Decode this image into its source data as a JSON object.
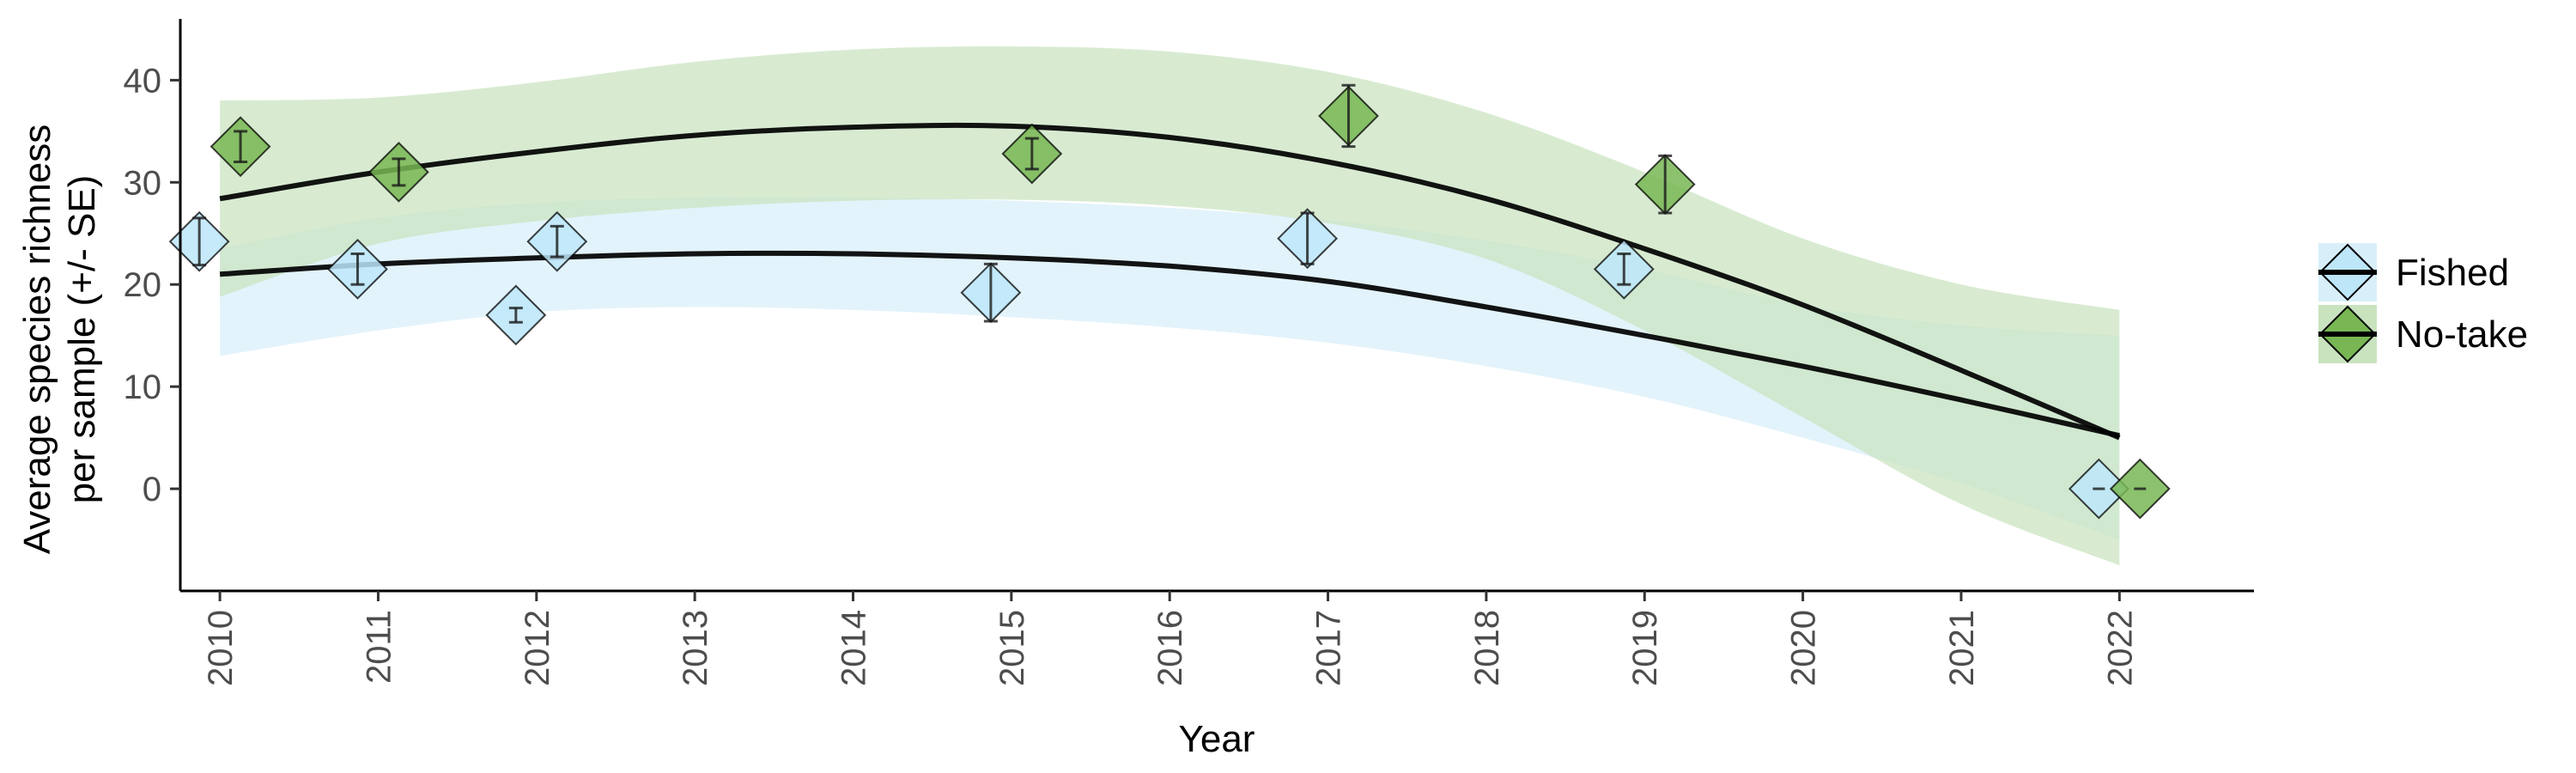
{
  "chart_data": {
    "type": "scatter",
    "title": "",
    "xlabel": "Year",
    "ylabel_lines": [
      "Average species richness",
      "per sample (+/- SE)"
    ],
    "xlim": [
      2009.75,
      2022.85
    ],
    "ylim": [
      -10,
      46
    ],
    "xticks": [
      2010,
      2011,
      2012,
      2013,
      2014,
      2015,
      2016,
      2017,
      2018,
      2019,
      2020,
      2021,
      2022
    ],
    "yticks": [
      0,
      10,
      20,
      30,
      40
    ],
    "grid": false,
    "legend_position": "right",
    "series": [
      {
        "name": "Fished",
        "color": "#bde6f9",
        "band_color": "#d8effa",
        "points": [
          {
            "x": 2009.87,
            "y": 24.2,
            "se": 2.3
          },
          {
            "x": 2010.87,
            "y": 21.5,
            "se": 1.5
          },
          {
            "x": 2011.87,
            "y": 17.0,
            "se": 0.7
          },
          {
            "x": 2012.13,
            "y": 24.2,
            "se": 1.5
          },
          {
            "x": 2014.87,
            "y": 19.2,
            "se": 2.8
          },
          {
            "x": 2016.87,
            "y": 24.5,
            "se": 2.5
          },
          {
            "x": 2018.87,
            "y": 21.5,
            "se": 1.5
          },
          {
            "x": 2021.87,
            "y": 0.0,
            "se": 0.0
          }
        ],
        "fit": {
          "x": [
            2010,
            2011,
            2012,
            2013,
            2014,
            2015,
            2016,
            2017,
            2018,
            2019,
            2020,
            2021,
            2022
          ],
          "y": [
            21.0,
            22.0,
            22.6,
            23.0,
            23.0,
            22.6,
            21.8,
            20.3,
            17.8,
            15.0,
            12.0,
            8.7,
            5.2
          ]
        },
        "band": {
          "upper": [
            23.5,
            26.5,
            28.0,
            28.5,
            28.5,
            28.2,
            27.5,
            26.3,
            24.3,
            21.5,
            18.0,
            16.0,
            15.0
          ],
          "lower": [
            13.0,
            15.5,
            17.3,
            17.8,
            17.5,
            16.8,
            15.8,
            14.3,
            12.0,
            9.0,
            5.0,
            0.5,
            -5.0
          ]
        }
      },
      {
        "name": "No-take",
        "color": "#78b754",
        "band_color": "#c9e3bf",
        "points": [
          {
            "x": 2010.13,
            "y": 33.5,
            "se": 1.5
          },
          {
            "x": 2011.13,
            "y": 31.0,
            "se": 1.3
          },
          {
            "x": 2015.13,
            "y": 32.8,
            "se": 1.5
          },
          {
            "x": 2017.13,
            "y": 36.5,
            "se": 3.0
          },
          {
            "x": 2019.13,
            "y": 29.8,
            "se": 2.8
          },
          {
            "x": 2022.13,
            "y": 0.0,
            "se": 0.0
          }
        ],
        "fit": {
          "x": [
            2010,
            2011,
            2012,
            2013,
            2014,
            2015,
            2016,
            2017,
            2018,
            2019,
            2020,
            2021,
            2022
          ],
          "y": [
            28.4,
            31.0,
            33.0,
            34.6,
            35.4,
            35.5,
            34.4,
            32.0,
            28.4,
            23.5,
            18.0,
            11.6,
            5.0
          ]
        },
        "band": {
          "upper": [
            38.0,
            38.3,
            39.8,
            41.8,
            43.0,
            43.3,
            42.8,
            40.8,
            36.8,
            31.0,
            24.5,
            20.0,
            17.5
          ],
          "lower": [
            18.8,
            24.0,
            26.2,
            27.5,
            28.2,
            28.3,
            27.7,
            26.0,
            22.5,
            15.5,
            7.0,
            -1.5,
            -7.5
          ]
        }
      }
    ]
  }
}
